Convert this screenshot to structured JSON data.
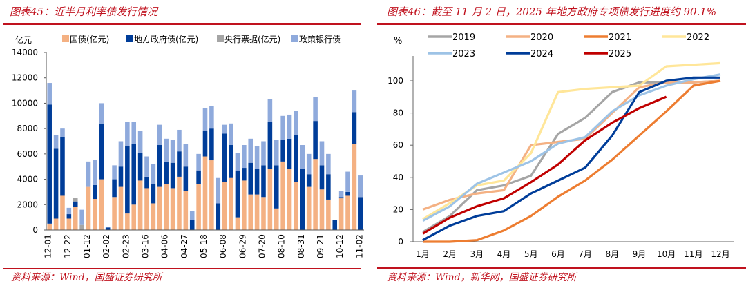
{
  "left": {
    "title": "图表45：近半月利率债发行情况",
    "source": "资料来源：Wind，国盛证券研究所"
  },
  "right": {
    "title": "图表46：截至 11 月 2 日，2025 年地方政府专项债发行进度约 90.1%",
    "source": "资料来源：Wind，新华网，国盛证券研究所"
  },
  "chart_data": [
    {
      "type": "bar",
      "stacked": true,
      "title": "近半月利率债发行情况",
      "ylabel": "亿元",
      "ylim": [
        0,
        14000
      ],
      "yticks": [
        0,
        2000,
        4000,
        6000,
        8000,
        10000,
        12000,
        14000
      ],
      "xtick_labels": [
        "12-01",
        "12-22",
        "01-12",
        "02-02",
        "02-23",
        "03-16",
        "04-06",
        "04-27",
        "05-18",
        "06-08",
        "06-29",
        "07-20",
        "08-10",
        "08-31",
        "09-21",
        "10-12",
        "11-02"
      ],
      "legend_position": "top",
      "series": [
        {
          "name": "国债(亿元)",
          "color": "#f4b183",
          "values": [
            500,
            900,
            2700,
            900,
            1800,
            0,
            3400,
            2450,
            4000,
            0,
            2600,
            3400,
            1300,
            2000,
            3900,
            3300,
            2100,
            3400,
            3600,
            3300,
            4200,
            3100,
            0,
            3600,
            5800,
            5500,
            0,
            3800,
            4100,
            1000,
            3900,
            2800,
            2800,
            2600,
            4800,
            1700,
            5400,
            4800,
            3800,
            0,
            3400,
            5600,
            3200,
            2400,
            0,
            2500,
            2700,
            6800,
            0
          ]
        },
        {
          "name": "地方政府债(亿元)",
          "color": "#003d99",
          "values": [
            9400,
            5500,
            4600,
            350,
            450,
            0,
            0,
            1100,
            4400,
            200,
            1400,
            1600,
            5300,
            4800,
            2200,
            900,
            1500,
            3300,
            1800,
            2000,
            2000,
            1900,
            800,
            1100,
            2000,
            2500,
            2100,
            3800,
            2600,
            3700,
            1000,
            2500,
            2000,
            2500,
            3700,
            3400,
            1700,
            2400,
            3700,
            4800,
            1000,
            3000,
            1900,
            2000,
            800,
            100,
            300,
            2500,
            2600
          ]
        },
        {
          "name": "央行票据(亿元)",
          "color": "#a5a5a5",
          "values": [
            0,
            0,
            0,
            0,
            300,
            400,
            0,
            0,
            0,
            0,
            0,
            0,
            0,
            0,
            0,
            0,
            0,
            0,
            0,
            0,
            0,
            0,
            0,
            0,
            0,
            0,
            0,
            0,
            0,
            0,
            0,
            0,
            0,
            0,
            0,
            0,
            0,
            0,
            0,
            0,
            0,
            0,
            0,
            0,
            0,
            0,
            0,
            0,
            0
          ]
        },
        {
          "name": "政策银行债",
          "color": "#8faadc",
          "values": [
            1700,
            1100,
            700,
            500,
            0,
            1200,
            2000,
            2000,
            1600,
            0,
            1100,
            2000,
            1900,
            1700,
            1700,
            1600,
            1600,
            1600,
            1800,
            1800,
            1700,
            1800,
            700,
            1300,
            1800,
            1800,
            2000,
            700,
            1700,
            1400,
            1800,
            1900,
            1800,
            1900,
            1800,
            2000,
            1900,
            1900,
            1900,
            1900,
            1600,
            1900,
            1900,
            1600,
            0,
            500,
            1600,
            1700,
            1700
          ]
        }
      ]
    },
    {
      "type": "line",
      "title": "截至 11 月 2 日，2025 年地方政府专项债发行进度约 90.1%",
      "ylabel": "%",
      "ylim": [
        0,
        115
      ],
      "yticks": [
        0,
        20,
        40,
        60,
        80,
        100
      ],
      "x": [
        "1月",
        "2月",
        "3月",
        "4月",
        "5月",
        "6月",
        "7月",
        "8月",
        "9月",
        "10月",
        "11月",
        "12月"
      ],
      "legend_position": "top",
      "series": [
        {
          "name": "2019",
          "color": "#a5a5a5",
          "values": [
            6,
            16,
            32,
            35,
            41,
            67,
            77,
            93,
            99,
            99,
            99,
            100
          ]
        },
        {
          "name": "2020",
          "color": "#f4b183",
          "values": [
            20,
            26,
            30,
            32,
            60,
            62,
            64,
            80,
            96,
            99,
            99,
            100
          ]
        },
        {
          "name": "2021",
          "color": "#ed7d31",
          "values": [
            0,
            0,
            1,
            7,
            16,
            28,
            38,
            51,
            66,
            81,
            97,
            100
          ]
        },
        {
          "name": "2022",
          "color": "#ffe699",
          "values": [
            14,
            24,
            35,
            38,
            55,
            93,
            95,
            96,
            97,
            109,
            110,
            111
          ]
        },
        {
          "name": "2023",
          "color": "#9dc3e6",
          "values": [
            13,
            22,
            36,
            43,
            50,
            61,
            65,
            81,
            91,
            97,
            101,
            104
          ]
        },
        {
          "name": "2024",
          "color": "#003d99",
          "values": [
            1,
            10,
            16,
            19,
            30,
            38,
            46,
            66,
            93,
            100,
            102,
            102
          ]
        },
        {
          "name": "2025",
          "color": "#c00000",
          "values": [
            5,
            15,
            22,
            27,
            37,
            48,
            63,
            74,
            83,
            90.1,
            null,
            null
          ]
        }
      ]
    }
  ]
}
